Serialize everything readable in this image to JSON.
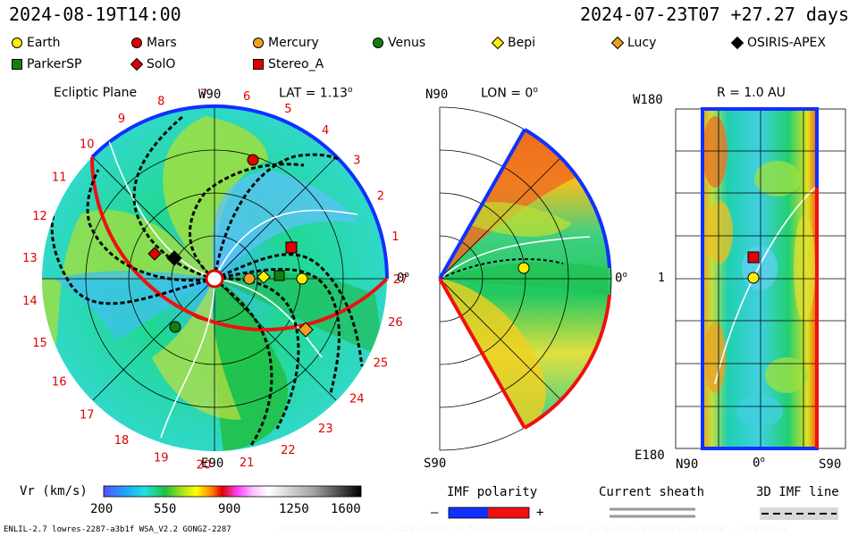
{
  "header": {
    "left_time": "2024-08-19T14:00",
    "right_time": "2024-07-23T07 +27.27 days"
  },
  "legend": [
    {
      "label": "Earth",
      "color": "#ffee00",
      "shape": "circle"
    },
    {
      "label": "Mars",
      "color": "#e00000",
      "shape": "circle"
    },
    {
      "label": "Mercury",
      "color": "#f0a020",
      "shape": "circle"
    },
    {
      "label": "Venus",
      "color": "#108010",
      "shape": "circle"
    },
    {
      "label": "Bepi",
      "color": "#ffee00",
      "shape": "diamond"
    },
    {
      "label": "Lucy",
      "color": "#f0a020",
      "shape": "diamond"
    },
    {
      "label": "OSIRIS-APEX",
      "color": "#000000",
      "shape": "diamond"
    },
    {
      "label": "ParkerSP",
      "color": "#108010",
      "shape": "square"
    },
    {
      "label": "SolO",
      "color": "#e00000",
      "shape": "diamond"
    },
    {
      "label": "Stereo_A",
      "color": "#e00000",
      "shape": "square"
    }
  ],
  "panels": {
    "ecliptic": {
      "title": "Ecliptic Plane",
      "lat_label": "LAT = 1.13",
      "lat_deg": "o",
      "top_label": "W90",
      "bottom_label": "E90",
      "right_label": "0",
      "right_deg": "o",
      "carrington_numbers": [
        "1",
        "2",
        "3",
        "4",
        "5",
        "6",
        "7",
        "8",
        "9",
        "10",
        "11",
        "12",
        "13",
        "14",
        "15",
        "16",
        "17",
        "18",
        "19",
        "20",
        "21",
        "22",
        "23",
        "24",
        "25",
        "26",
        "27"
      ]
    },
    "meridional": {
      "title": "LON = 0",
      "title_deg": "o",
      "top_label": "N90",
      "bottom_label": "S90",
      "right_label": "0",
      "right_deg": "o"
    },
    "latlon": {
      "title": "R = 1.0 AU",
      "top_left": "W180",
      "middle_left": "1",
      "bottom_left": "E180",
      "bottom_labels": [
        "N90",
        "0",
        "S90"
      ],
      "bottom_deg": "o"
    }
  },
  "colorbar": {
    "label": "Vr (km/s)",
    "ticks": [
      "200",
      "550",
      "900",
      "1250",
      "1600"
    ]
  },
  "imf": {
    "title": "IMF polarity",
    "minus": "–",
    "plus": "+"
  },
  "sheath": {
    "title": "Current sheath"
  },
  "imf3d": {
    "title": "3D IMF line"
  },
  "footer": {
    "left": "ENLIL-2.7 lowres-2287-a3b1f WSA_V2.2 GONGZ-2287",
    "middle": "E08414145X02/256x30x90-1-2287-a3b1f-18-fixcp/lume/cdo-1/gs3qdz2.gongz-2024/08/23T21:44/20100 - 2024-08-14"
  }
}
